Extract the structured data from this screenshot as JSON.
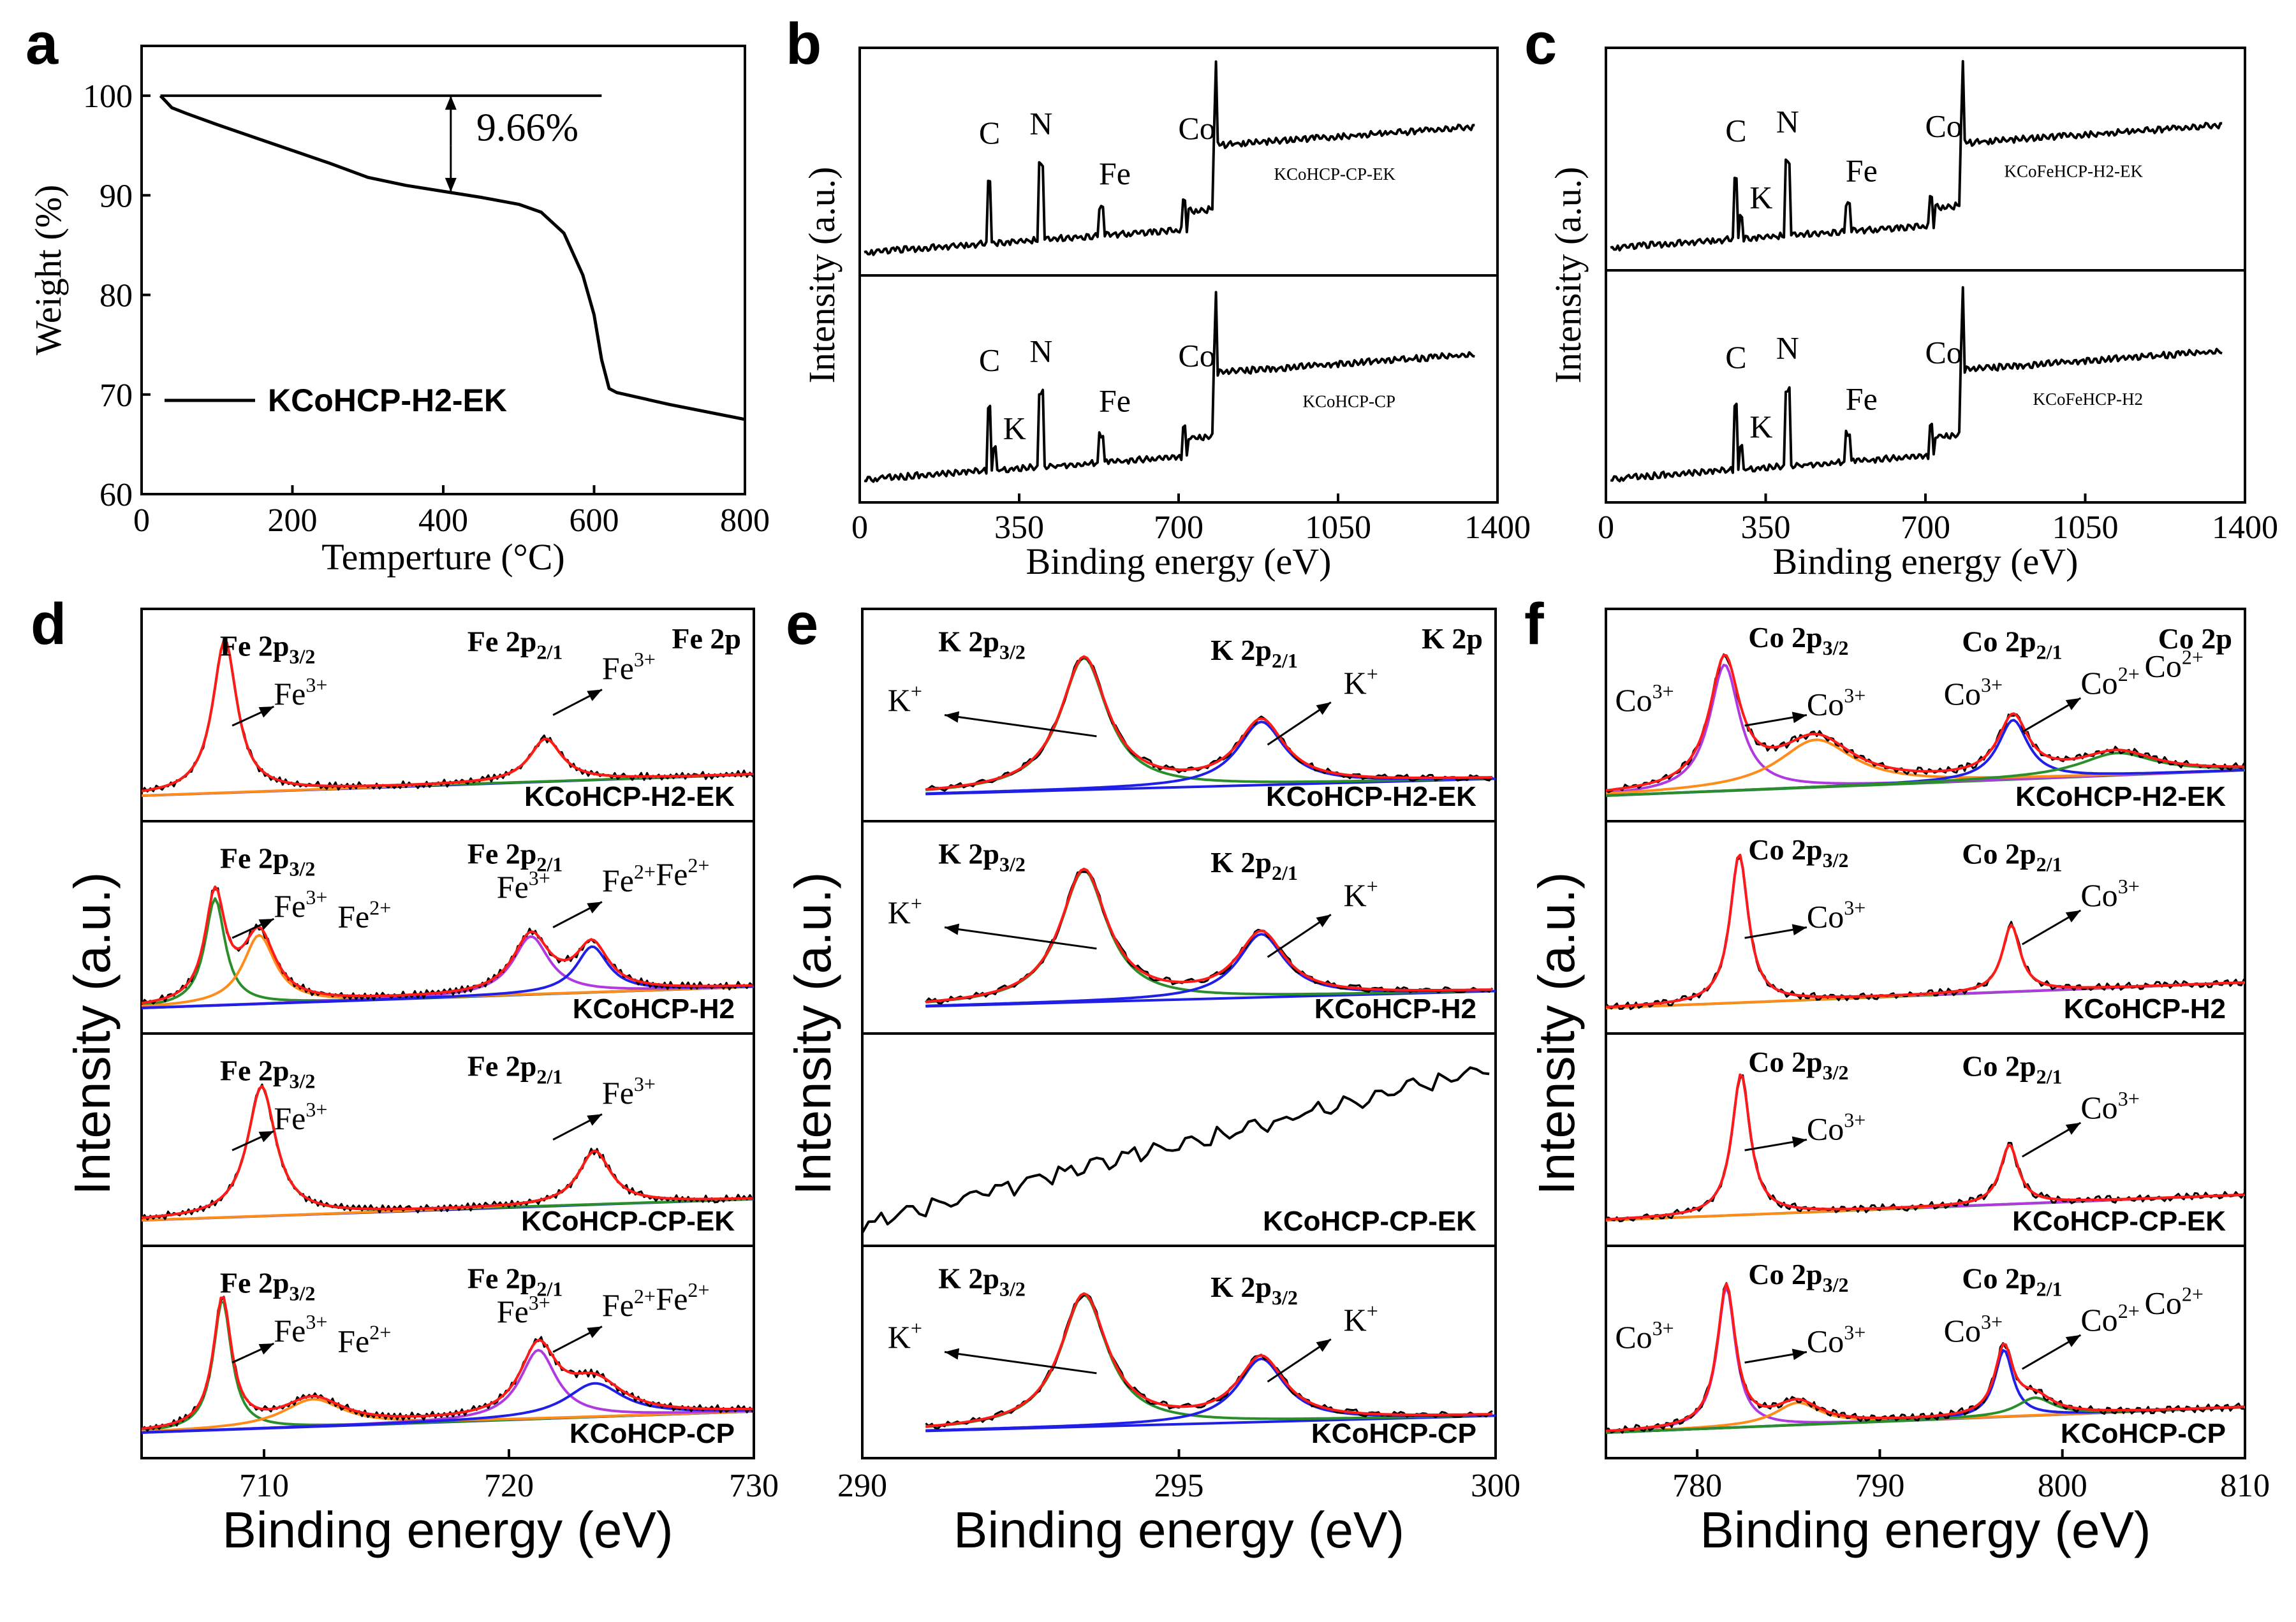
{
  "chart_data": [
    {
      "id": "a",
      "type": "line",
      "panel_letter": "a",
      "xlabel": "Temperture (°C)",
      "ylabel": "Weight (%)",
      "xlim": [
        0,
        800
      ],
      "ylim": [
        60,
        105
      ],
      "xticks": [
        0,
        200,
        400,
        600,
        800
      ],
      "yticks": [
        60,
        70,
        80,
        90,
        100
      ],
      "legend": "KCoHCP-H2-EK",
      "annotation": "9.66%",
      "reference_level": 100,
      "final_level": 90.34,
      "series": [
        {
          "name": "KCoHCP-H2-EK",
          "x": [
            25,
            40,
            60,
            100,
            150,
            200,
            250,
            300,
            350,
            400,
            450,
            500,
            530,
            560,
            585,
            600,
            610,
            620,
            630,
            700,
            800
          ],
          "y": [
            100,
            98.8,
            98.2,
            97.1,
            95.8,
            94.5,
            93.2,
            91.8,
            91.0,
            90.4,
            89.8,
            89.1,
            88.3,
            86.2,
            82.0,
            78.0,
            73.5,
            70.6,
            70.2,
            69.0,
            67.5
          ]
        }
      ]
    },
    {
      "id": "b",
      "type": "line",
      "panel_letter": "b",
      "xlabel": "Binding energy (eV)",
      "ylabel": "Intensity (a.u.)",
      "xlim": [
        0,
        1400
      ],
      "xticks": [
        0,
        350,
        700,
        1050,
        1400
      ],
      "subpanels": [
        {
          "sample": "KCoHCP-CP-EK",
          "peaks": [
            "C",
            "N",
            "Fe",
            "Co"
          ]
        },
        {
          "sample": "KCoHCP-CP",
          "peaks": [
            "C",
            "K",
            "N",
            "Fe",
            "Co"
          ]
        }
      ]
    },
    {
      "id": "c",
      "type": "line",
      "panel_letter": "c",
      "xlabel": "Binding energy (eV)",
      "ylabel": "Intensity (a.u.)",
      "xlim": [
        0,
        1400
      ],
      "xticks": [
        0,
        350,
        700,
        1050,
        1400
      ],
      "subpanels": [
        {
          "sample": "KCoFeHCP-H2-EK",
          "peaks": [
            "C",
            "K",
            "N",
            "Fe",
            "Co"
          ]
        },
        {
          "sample": "KCoFeHCP-H2",
          "peaks": [
            "C",
            "K",
            "N",
            "Fe",
            "Co"
          ]
        }
      ]
    },
    {
      "id": "d",
      "type": "line",
      "panel_letter": "d",
      "xlabel": "Binding energy (eV)",
      "ylabel": "Intensity (a.u.)",
      "xlim": [
        705,
        730
      ],
      "xticks": [
        710,
        720,
        730
      ],
      "corner_label": "Fe 2p",
      "subpanels": [
        {
          "sample": "KCoHCP-H2-EK",
          "labels": [
            "Fe 2p3/2",
            "Fe 2p2/1",
            "Fe3+",
            "Fe3+"
          ]
        },
        {
          "sample": "KCoHCP-H2",
          "labels": [
            "Fe 2p3/2",
            "Fe 2p2/1",
            "Fe3+",
            "Fe2+",
            "Fe3+",
            "Fe2+"
          ]
        },
        {
          "sample": "KCoHCP-CP-EK",
          "labels": [
            "Fe 2p3/2",
            "Fe 2p2/1",
            "Fe3+",
            "Fe3+"
          ]
        },
        {
          "sample": "KCoHCP-CP",
          "labels": [
            "Fe 2p3/2",
            "Fe 2p2/1",
            "Fe3+",
            "Fe2+",
            "Fe3+",
            "Fe2+"
          ]
        }
      ]
    },
    {
      "id": "e",
      "type": "line",
      "panel_letter": "e",
      "xlabel": "Binding energy (eV)",
      "ylabel": "Intensity (a.u.)",
      "xlim": [
        290,
        300
      ],
      "xticks": [
        290,
        295,
        300
      ],
      "corner_label": "K 2p",
      "subpanels": [
        {
          "sample": "KCoHCP-H2-EK",
          "labels": [
            "K 2p3/2",
            "K 2p2/1",
            "K+",
            "K+"
          ]
        },
        {
          "sample": "KCoHCP-H2",
          "labels": [
            "K 2p3/2",
            "K 2p2/1",
            "K+",
            "K+"
          ]
        },
        {
          "sample": "KCoHCP-CP-EK",
          "labels": []
        },
        {
          "sample": "KCoHCP-CP",
          "labels": [
            "K 2p3/2",
            "K 2p3/2",
            "K+",
            "K+"
          ]
        }
      ]
    },
    {
      "id": "f",
      "type": "line",
      "panel_letter": "f",
      "xlabel": "Binding energy (eV)",
      "ylabel": "Intensity (a.u.)",
      "xlim": [
        775,
        810
      ],
      "xticks": [
        780,
        790,
        800,
        810
      ],
      "corner_label": "Co 2p",
      "subpanels": [
        {
          "sample": "KCoHCP-H2-EK",
          "labels": [
            "Co 2p3/2",
            "Co 2p2/1",
            "Co3+",
            "Co2+",
            "Co3+",
            "Co2+"
          ]
        },
        {
          "sample": "KCoHCP-H2",
          "labels": [
            "Co 2p3/2",
            "Co 2p2/1",
            "Co3+",
            "Co3+"
          ]
        },
        {
          "sample": "KCoHCP-CP-EK",
          "labels": [
            "Co 2p3/2",
            "Co 2p2/1",
            "Co3+",
            "Co3+"
          ]
        },
        {
          "sample": "KCoHCP-CP",
          "labels": [
            "Co 2p3/2",
            "Co 2p2/1",
            "Co3+",
            "Co2+",
            "Co3+",
            "Co2+"
          ]
        }
      ]
    }
  ],
  "colors": {
    "data": "#000000",
    "fit_total": "#ff1a1a",
    "component_a": "#1f1fe6",
    "component_b": "#2a8f2a",
    "component_c": "#ff8c1a",
    "component_d": "#b03ae0"
  }
}
